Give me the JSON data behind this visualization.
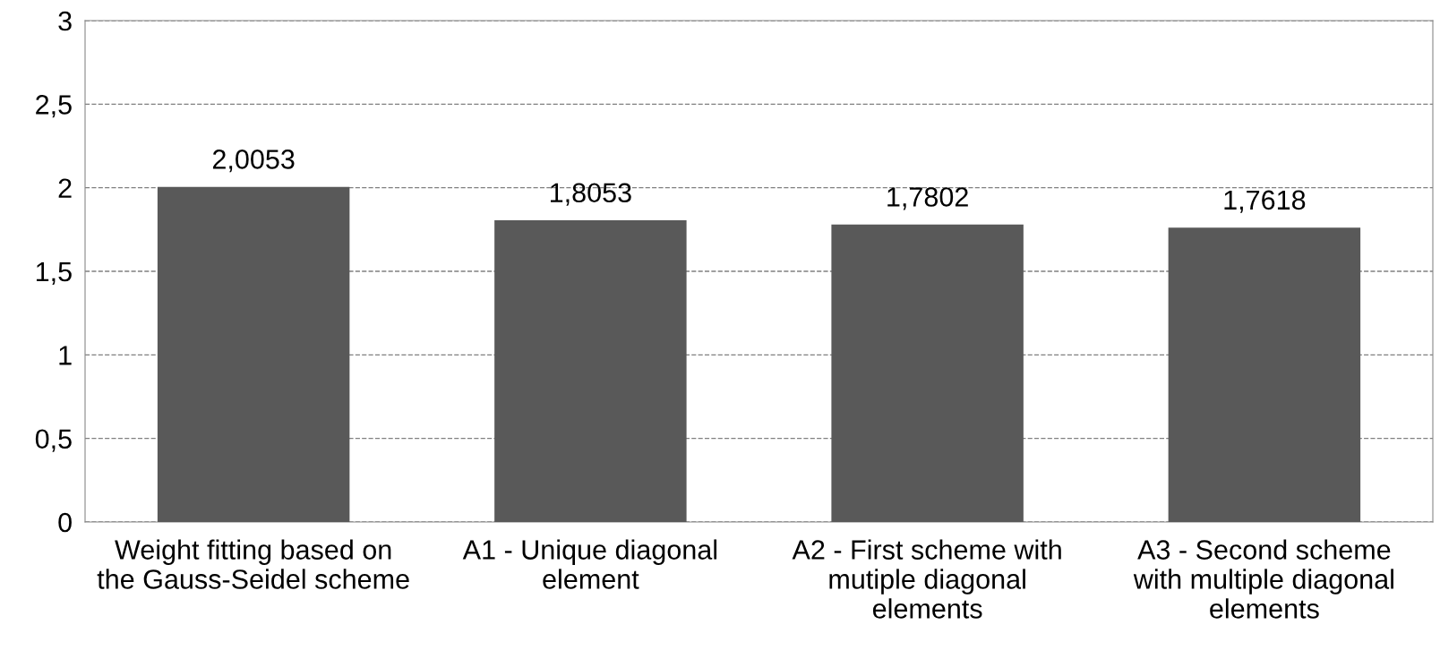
{
  "chart_data": {
    "type": "bar",
    "categories": [
      "Weight fitting based on\nthe Gauss-Seidel scheme",
      "A1 - Unique diagonal\nelement",
      "A2 - First scheme with\nmutiple diagonal\nelements",
      "A3 - Second scheme\nwith multiple diagonal\nelements"
    ],
    "values": [
      2.0053,
      1.8053,
      1.7802,
      1.7618
    ],
    "value_labels": [
      "2,0053",
      "1,8053",
      "1,7802",
      "1,7618"
    ],
    "color": "#595959",
    "ylim": [
      0,
      3
    ],
    "yticks": [
      0,
      {
        "value": 0.5,
        "label": "0,5"
      },
      1,
      {
        "value": 1.5,
        "label": "1,5"
      },
      2,
      {
        "value": 2.5,
        "label": "2,5"
      },
      3
    ],
    "grid": "y",
    "legend": false
  }
}
